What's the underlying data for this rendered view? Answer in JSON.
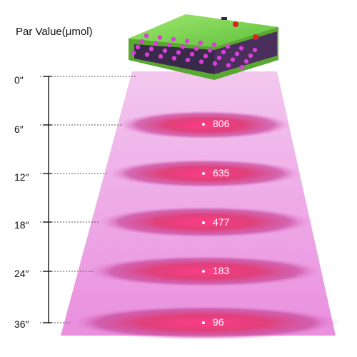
{
  "title": "Par Value(μmol)",
  "measurements": [
    {
      "distance": "0″",
      "par": ""
    },
    {
      "distance": "6″",
      "par": "806"
    },
    {
      "distance": "12″",
      "par": "635"
    },
    {
      "distance": "18″",
      "par": "477"
    },
    {
      "distance": "24″",
      "par": "183"
    },
    {
      "distance": "36″",
      "par": "96"
    }
  ],
  "colors": {
    "beam": "#f0b0e8",
    "ring_core": "#e0407a",
    "lamp_body": "#7ed957",
    "led": "#d83fd8"
  },
  "icons": [
    "led-grow-light-icon"
  ]
}
